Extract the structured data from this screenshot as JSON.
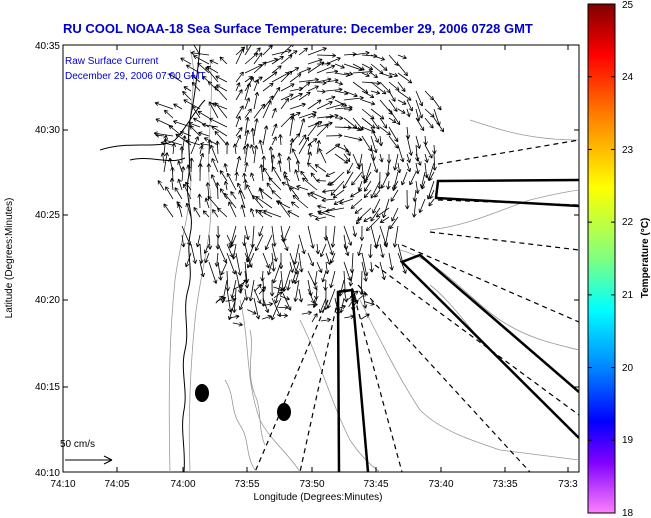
{
  "title": "RU COOL  NOAA-18  Sea Surface Temperature:  December 29, 2006 0728 GMT",
  "annotation": {
    "line1": "Raw Surface Current",
    "line2": "December 29, 2006 07:00 GMT"
  },
  "scale_arrow_label": "50 cm/s",
  "axes": {
    "xlabel": "Longitude (Degrees:Minutes)",
    "ylabel": "Latitude (Degrees:Minutes)",
    "xticks": [
      "74:10",
      "74:05",
      "74:00",
      "73:55",
      "73:50",
      "73:45",
      "73:40",
      "73:35",
      "73:3"
    ],
    "yticks": [
      "40:35",
      "40:30",
      "40:25",
      "40:20",
      "40:15",
      "40:10"
    ]
  },
  "colorbar": {
    "label": "Temperature (°C)",
    "ticks": [
      "25",
      "24",
      "23",
      "22",
      "21",
      "20",
      "19",
      "18"
    ],
    "colors": [
      "#800000",
      "#ff0000",
      "#ff8000",
      "#ffff00",
      "#80ff80",
      "#00ffff",
      "#0080ff",
      "#0000ff",
      "#8000ff",
      "#ff80ff"
    ]
  },
  "map_colors": {
    "land_line": "#000000",
    "contour": "#888888",
    "background": "#ffffff"
  }
}
